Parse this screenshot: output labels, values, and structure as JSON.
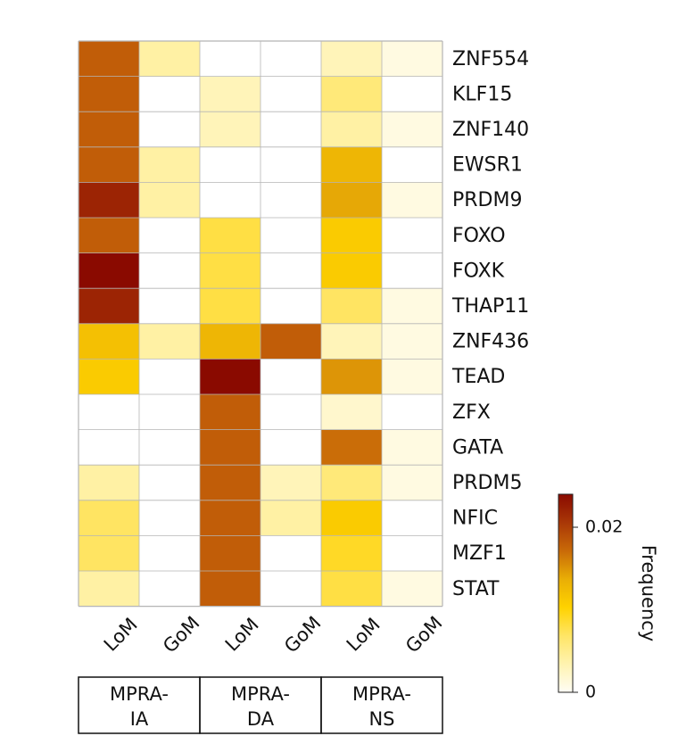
{
  "chart_data": {
    "type": "heatmap",
    "rows": [
      "ZNF554",
      "KLF15",
      "ZNF140",
      "EWSR1",
      "PRDM9",
      "FOXO",
      "FOXK",
      "THAP11",
      "ZNF436",
      "TEAD",
      "ZFX",
      "GATA",
      "PRDM5",
      "NFIC",
      "MZF1",
      "STAT"
    ],
    "columns": [
      "LoM",
      "GoM",
      "LoM",
      "GoM",
      "LoM",
      "GoM"
    ],
    "groups": [
      {
        "label_lines": [
          "MPRA-",
          "IA"
        ],
        "columns": [
          0,
          1
        ]
      },
      {
        "label_lines": [
          "MPRA-",
          "DA"
        ],
        "columns": [
          2,
          3
        ]
      },
      {
        "label_lines": [
          "MPRA-",
          "NS"
        ],
        "columns": [
          4,
          5
        ]
      }
    ],
    "values": [
      [
        0.018,
        0.004,
        0.0,
        0.0,
        0.003,
        0.001
      ],
      [
        0.018,
        0.0,
        0.003,
        0.0,
        0.006,
        0.0
      ],
      [
        0.018,
        0.0,
        0.003,
        0.0,
        0.004,
        0.001
      ],
      [
        0.018,
        0.004,
        0.0,
        0.0,
        0.013,
        0.0
      ],
      [
        0.022,
        0.004,
        0.0,
        0.0,
        0.014,
        0.001
      ],
      [
        0.018,
        0.0,
        0.008,
        0.0,
        0.011,
        0.0
      ],
      [
        0.028,
        0.0,
        0.008,
        0.0,
        0.011,
        0.0
      ],
      [
        0.022,
        0.0,
        0.008,
        0.0,
        0.007,
        0.001
      ],
      [
        0.012,
        0.004,
        0.013,
        0.018,
        0.003,
        0.001
      ],
      [
        0.011,
        0.0,
        0.028,
        0.0,
        0.015,
        0.001
      ],
      [
        0.0,
        0.0,
        0.018,
        0.0,
        0.002,
        0.0
      ],
      [
        0.0,
        0.0,
        0.018,
        0.0,
        0.017,
        0.001
      ],
      [
        0.004,
        0.0,
        0.018,
        0.003,
        0.006,
        0.001
      ],
      [
        0.007,
        0.0,
        0.018,
        0.004,
        0.011,
        0.0
      ],
      [
        0.007,
        0.0,
        0.018,
        0.0,
        0.009,
        0.0
      ],
      [
        0.004,
        0.0,
        0.018,
        0.0,
        0.008,
        0.001
      ]
    ],
    "colorbar": {
      "title": "Frequency",
      "min": 0,
      "max": 0.024,
      "ticks": [
        {
          "value": 0,
          "label": "0"
        },
        {
          "value": 0.02,
          "label": "0.02"
        }
      ],
      "colors": [
        "#fffdf5",
        "#fff3b0",
        "#ffe566",
        "#ffd200",
        "#e9ae06",
        "#c96a08",
        "#a93707",
        "#8a0a00"
      ]
    }
  }
}
